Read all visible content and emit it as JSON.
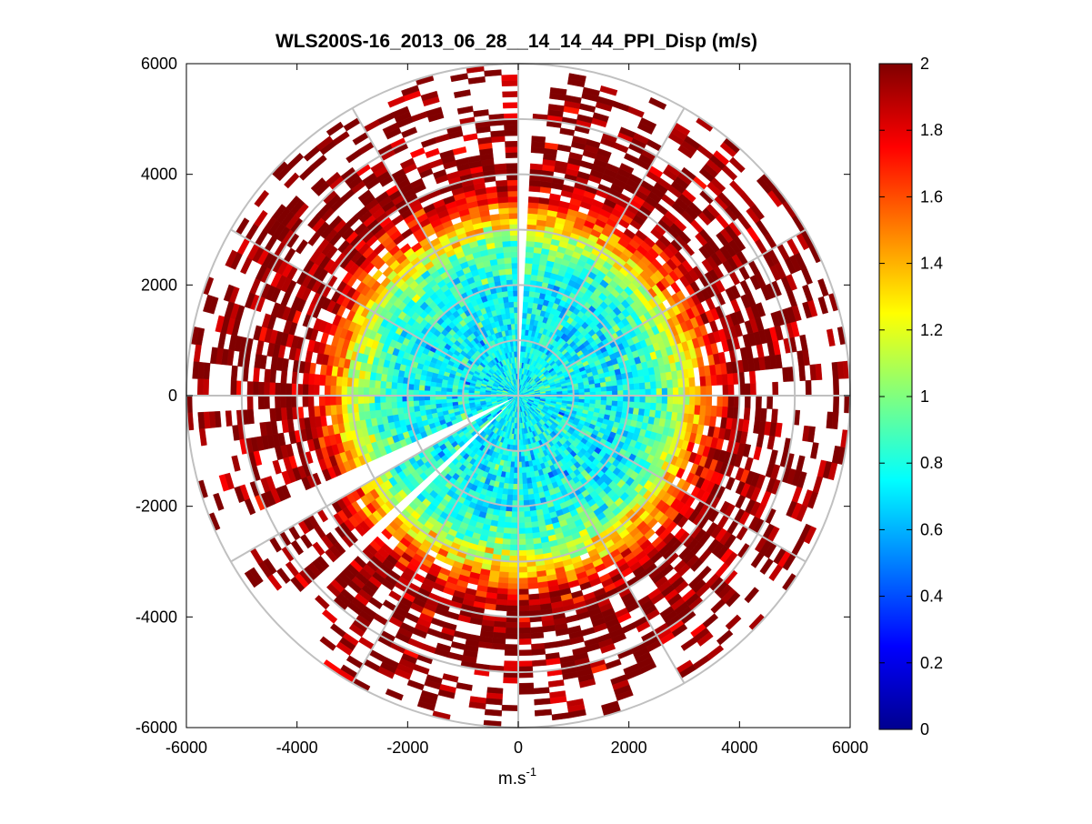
{
  "chart_data": {
    "type": "heatmap",
    "subtype": "polar-ppi",
    "title": "WLS200S-16_2013_06_28__14_14_44_PPI_Disp (m/s)",
    "xlabel": "m.s",
    "xlabel_superscript": "-1",
    "ylabel": "",
    "xlim": [
      -6000,
      6000
    ],
    "ylim": [
      -6000,
      6000
    ],
    "x_ticks": [
      -6000,
      -4000,
      -2000,
      0,
      2000,
      4000,
      6000
    ],
    "y_ticks": [
      6000,
      4000,
      2000,
      0,
      -2000,
      -4000,
      -6000
    ],
    "x_tick_labels": [
      "-6000",
      "-4000",
      "-2000",
      "0",
      "2000",
      "4000",
      "6000"
    ],
    "y_tick_labels": [
      "6000",
      "4000",
      "2000",
      "0",
      "-2000",
      "-4000",
      "-6000"
    ],
    "polar_grid": {
      "radii": [
        1000,
        2000,
        3000,
        4000,
        5000,
        6000
      ],
      "spoke_angles_deg": [
        0,
        30,
        60,
        90,
        120,
        150,
        180,
        210,
        240,
        270,
        300,
        330
      ]
    },
    "colorbar": {
      "range": [
        0,
        2
      ],
      "ticks": [
        0,
        0.2,
        0.4,
        0.6,
        0.8,
        1,
        1.2,
        1.4,
        1.6,
        1.8,
        2
      ],
      "tick_labels": [
        "0",
        "0.2",
        "0.4",
        "0.6",
        "0.8",
        "1",
        "1.2",
        "1.4",
        "1.6",
        "1.8",
        "2"
      ],
      "colormap": "jet"
    },
    "data_extent_range_m": 6000,
    "range_gate_m": 100,
    "azimuth_step_deg": 3,
    "data_gaps_azimuth_deg": [
      [
        88,
        91
      ],
      [
        203,
        209
      ],
      [
        221,
        224
      ]
    ],
    "radial_profile": {
      "range_m": [
        0,
        1000,
        2000,
        2600,
        3000,
        3500,
        4000,
        5000,
        6000
      ],
      "typical_value": [
        0.75,
        0.75,
        0.75,
        0.9,
        1.2,
        1.7,
        2.0,
        2.0,
        2.0
      ],
      "fill_fraction": [
        1.0,
        1.0,
        1.0,
        1.0,
        1.0,
        0.9,
        0.8,
        0.5,
        0.2
      ]
    }
  }
}
